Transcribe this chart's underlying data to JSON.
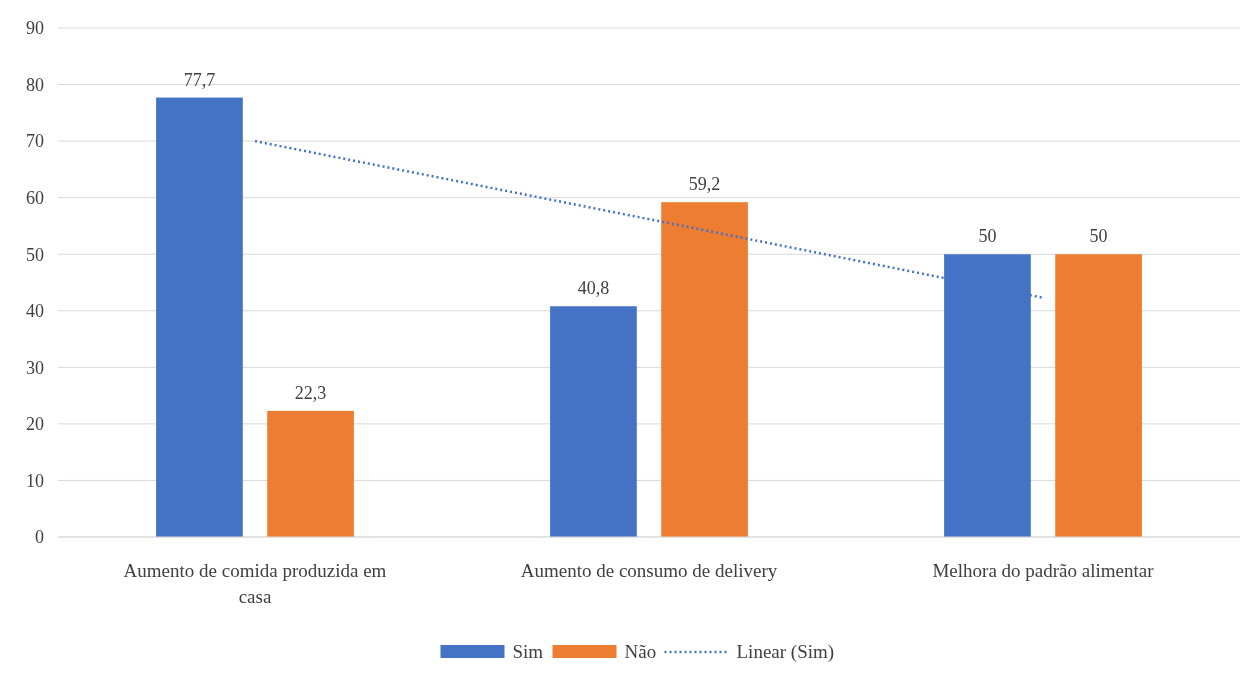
{
  "chart_data": {
    "type": "bar",
    "categories": [
      "Aumento de comida produzida em casa",
      "Aumento de consumo de delivery",
      "Melhora do padrão alimentar"
    ],
    "series": [
      {
        "name": "Sim",
        "color": "#4472c4",
        "values": [
          77.7,
          40.8,
          50
        ],
        "value_labels": [
          "77,7",
          "40,8",
          "50"
        ]
      },
      {
        "name": "Não",
        "color": "#ed7d31",
        "values": [
          22.3,
          59.2,
          50
        ],
        "value_labels": [
          "22,3",
          "59,2",
          "50"
        ]
      },
      {
        "name": "Linear (Sim)",
        "type": "line",
        "color": "#4472c4",
        "line_style": "dotted",
        "values": [
          70.0,
          56.2,
          42.3
        ]
      }
    ],
    "ylim": [
      0,
      90
    ],
    "yticks": [
      0,
      10,
      20,
      30,
      40,
      50,
      60,
      70,
      80,
      90
    ],
    "grid": "y",
    "legend": "bottom"
  }
}
